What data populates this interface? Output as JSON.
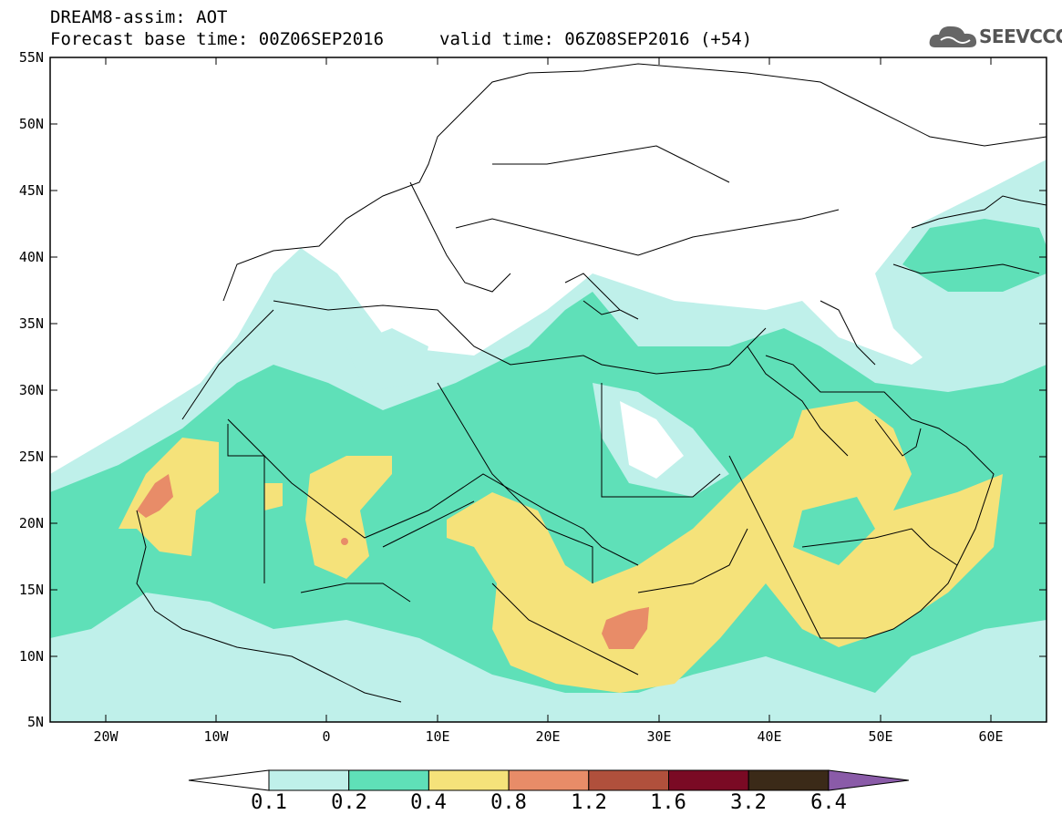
{
  "header": {
    "line1": "DREAM8-assim: AOT",
    "line2": "Forecast base time: 00Z06SEP2016",
    "valid": "valid time: 06Z08SEP2016 (+54)"
  },
  "logo": {
    "text": "SEEVCCC"
  },
  "axes": {
    "lat_labels": [
      "55N",
      "50N",
      "45N",
      "40N",
      "35N",
      "30N",
      "25N",
      "20N",
      "15N",
      "10N",
      "5N"
    ],
    "lon_labels": [
      "20W",
      "10W",
      "0",
      "10E",
      "20E",
      "30E",
      "40E",
      "50E",
      "60E"
    ]
  },
  "legend": {
    "thresholds": [
      "0.1",
      "0.2",
      "0.4",
      "0.8",
      "1.2",
      "1.6",
      "3.2",
      "6.4"
    ],
    "colors": [
      "#ffffff",
      "#bff0ea",
      "#5fe0b8",
      "#f5e27a",
      "#e88c68",
      "#b0503c",
      "#7a0a24",
      "#3b2a18",
      "#8a5ba8"
    ]
  }
}
